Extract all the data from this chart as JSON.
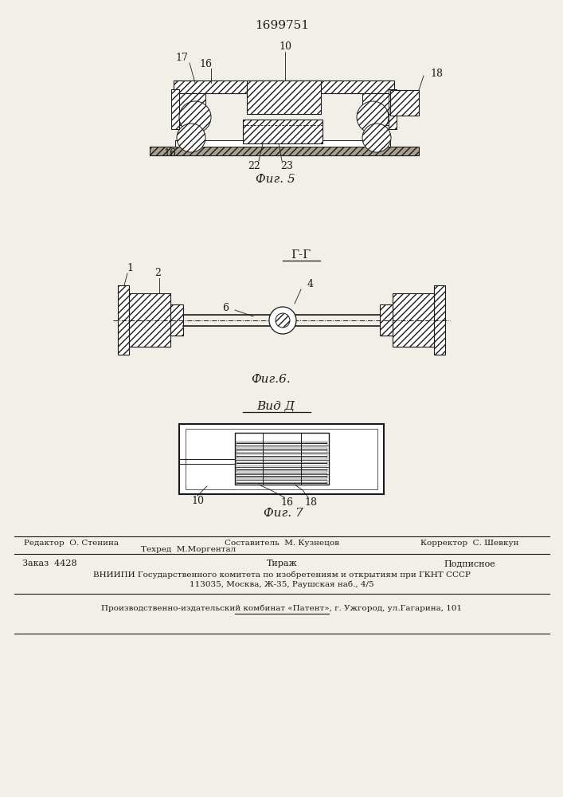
{
  "patent_number": "1699751",
  "bg_color": "#f2efe9",
  "line_color": "#1a1a1a",
  "fig5_caption": "Фиг. 5",
  "fig6_caption": "Фиг.6.",
  "fig7_caption": "Фиг. 7",
  "gg_label": "Г-Г",
  "vid_d_label": "Вид Д",
  "footer_line1_left": "Редактор  О. Стенина",
  "footer_line1_mid": "Составитель  М. Кузнецов",
  "footer_line1_right": "Корректор  С. Шевкун",
  "footer_tehred": "Техред  М.Моргентал",
  "footer_order": "Заказ  4428",
  "footer_tirazh": "Тираж",
  "footer_podpisnoe": "Подписное",
  "footer_vniiipi": "ВНИИПИ Государственного комитета по изобретениям и открытиям при ГКНТ СССР",
  "footer_address": "113035, Москва, Ж-35, Раушская наб., 4/5",
  "footer_patent": "Производственно-издательский комбинат «Патент», г. Ужгород, ул.Гагарина, 101"
}
